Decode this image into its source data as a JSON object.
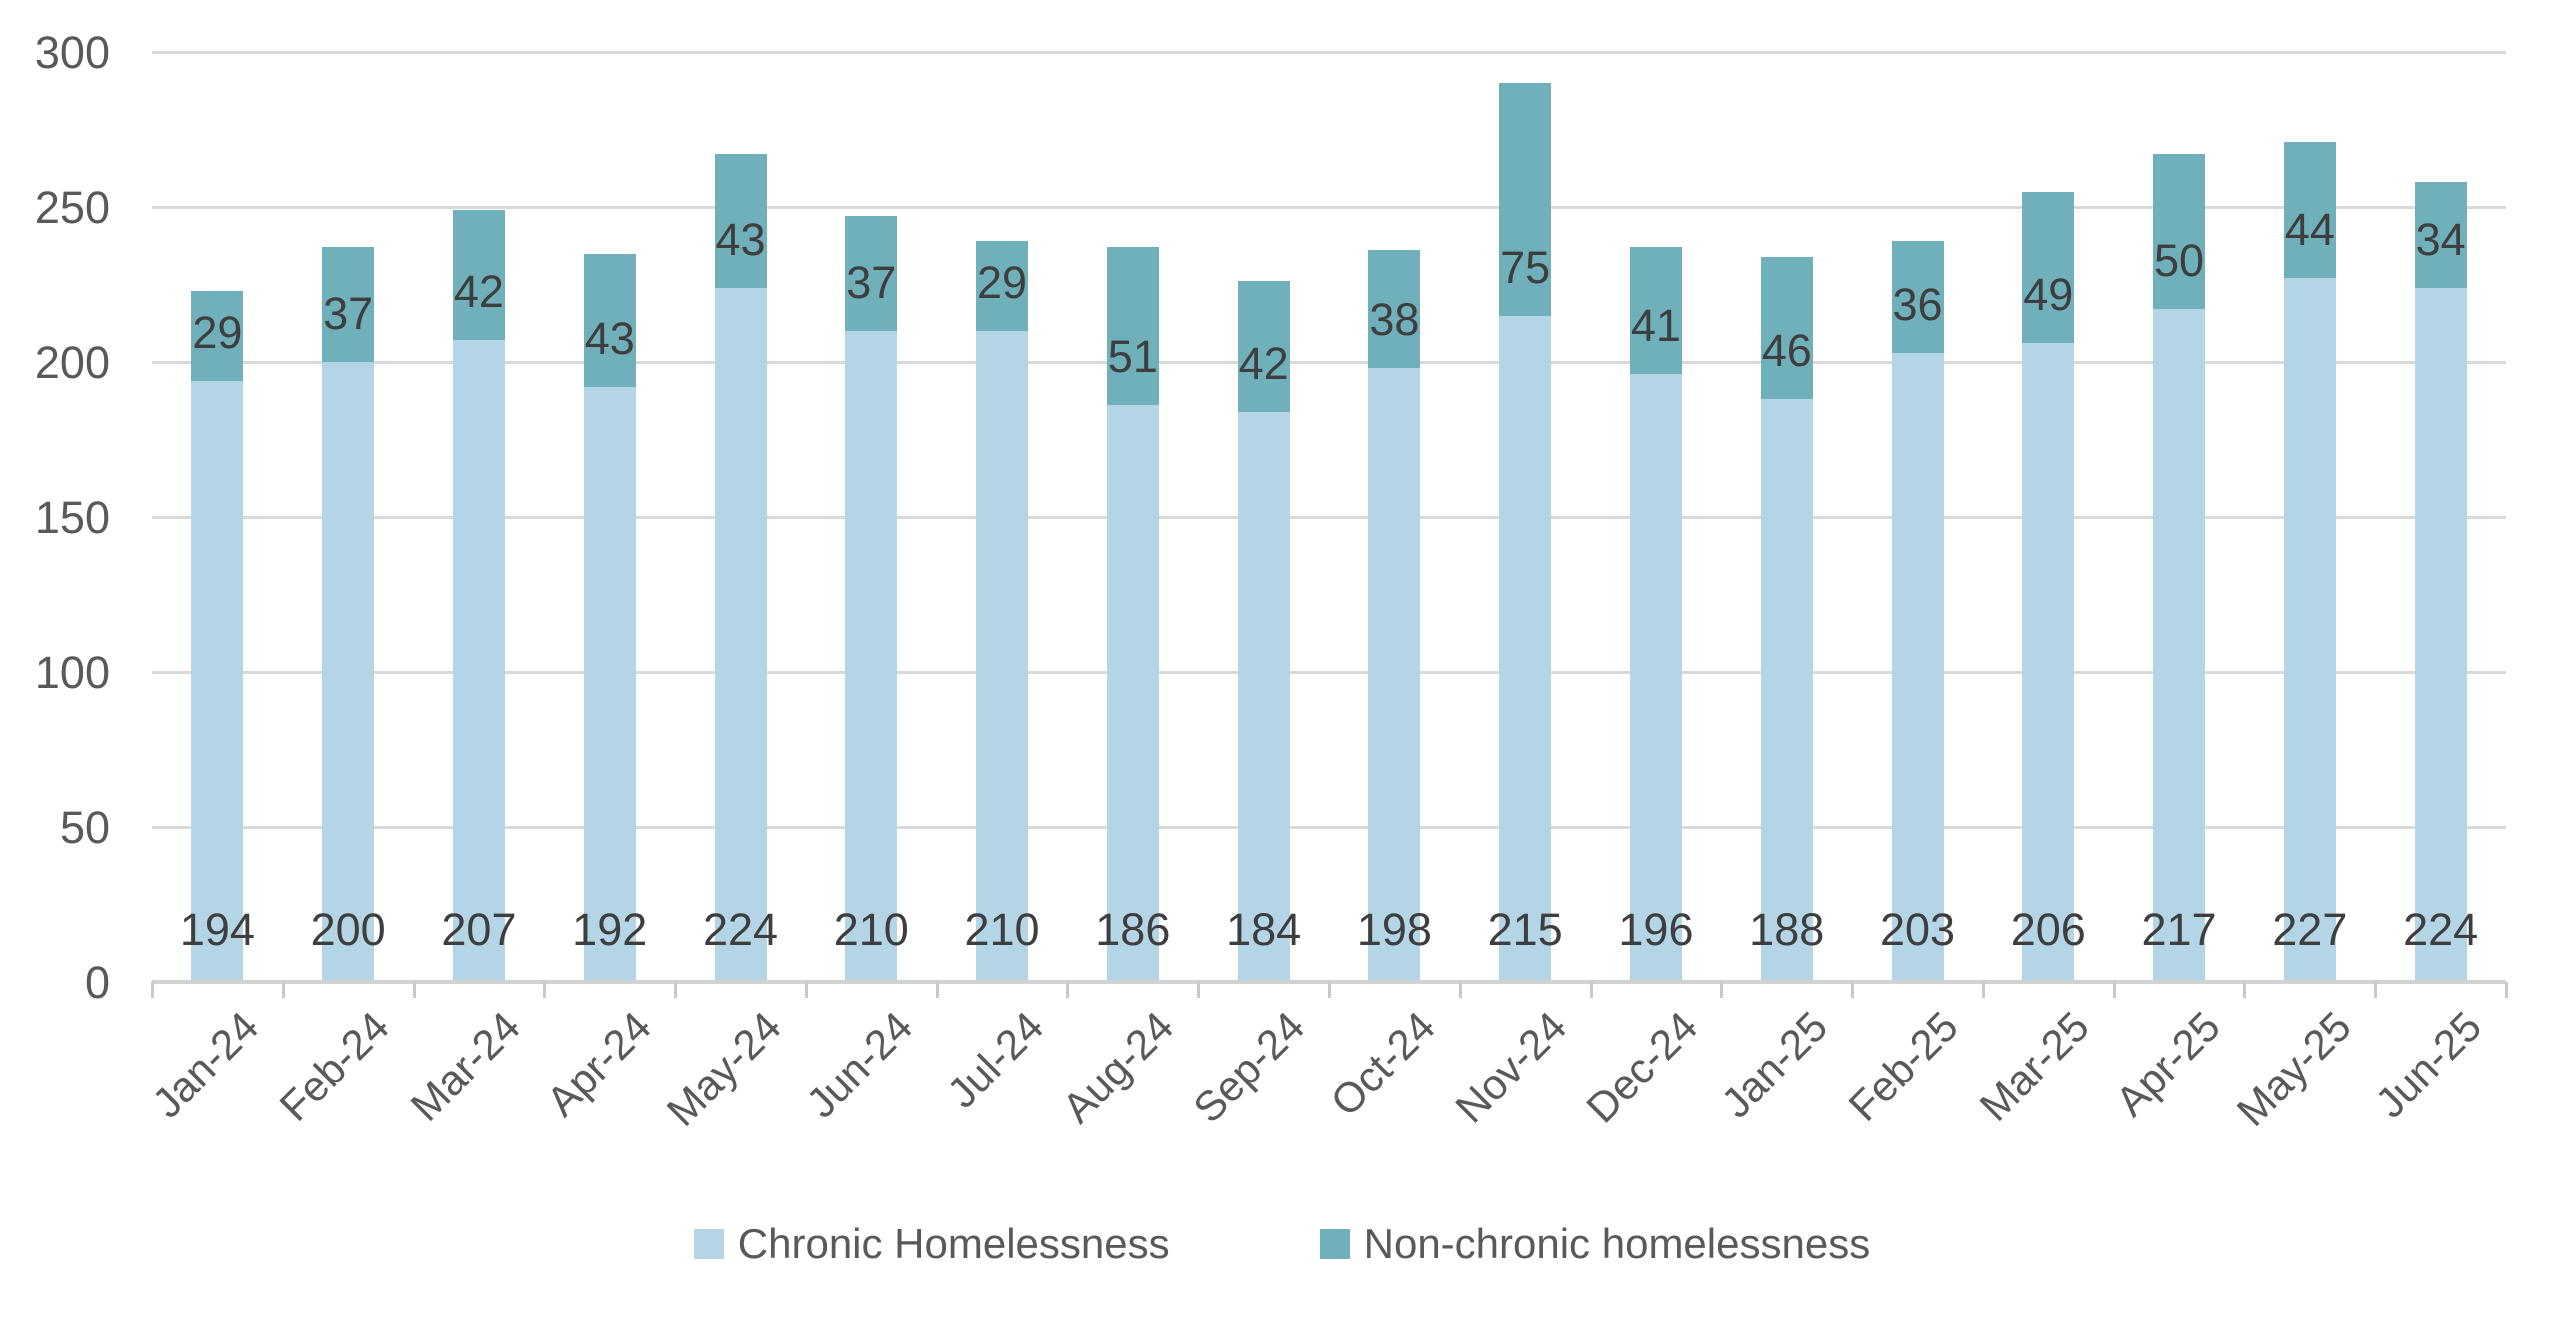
{
  "chart_data": {
    "type": "bar",
    "stacked": true,
    "title": "",
    "categories": [
      "Jan-24",
      "Feb-24",
      "Mar-24",
      "Apr-24",
      "May-24",
      "Jun-24",
      "Jul-24",
      "Aug-24",
      "Sep-24",
      "Oct-24",
      "Nov-24",
      "Dec-24",
      "Jan-25",
      "Feb-25",
      "Mar-25",
      "Apr-25",
      "May-25",
      "Jun-25"
    ],
    "series": [
      {
        "name": "Chronic Homelessness",
        "color": "#b4d5e6",
        "values": [
          194,
          200,
          207,
          192,
          224,
          210,
          210,
          186,
          184,
          198,
          215,
          196,
          188,
          203,
          206,
          217,
          227,
          224
        ]
      },
      {
        "name": "Non-chronic homelessness",
        "color": "#6fb0ba",
        "values": [
          29,
          37,
          42,
          43,
          43,
          37,
          29,
          51,
          42,
          38,
          75,
          41,
          46,
          36,
          49,
          50,
          44,
          34
        ]
      }
    ],
    "ylim": [
      0,
      300
    ],
    "yticks": [
      0,
      50,
      100,
      150,
      200,
      250,
      300
    ],
    "grid": "horizontal",
    "legend_position": "bottom",
    "data_labels": "inside-base",
    "xlabel": "",
    "ylabel": ""
  },
  "colors": {
    "chronic": "#b4d5e6",
    "nonchronic": "#6fb0ba",
    "gridline": "#d9d9d9",
    "axis_line": "#d2d2d2",
    "axis_text": "#595959",
    "data_label_text": "#3e3e3e",
    "background": "#ffffff"
  }
}
